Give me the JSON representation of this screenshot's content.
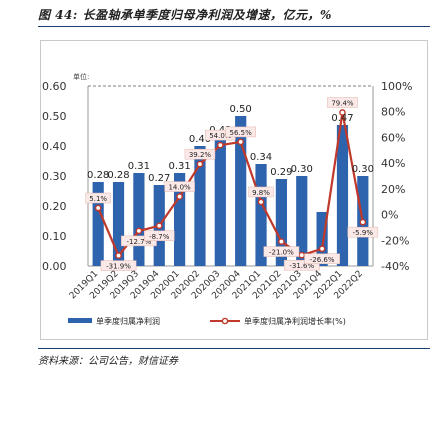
{
  "header": {
    "title": "图 44: 长盈轴承单季度归母净利润及增速，亿元，%"
  },
  "footer": {
    "source": "资料来源：公司公告，财信证券"
  },
  "chart_data": {
    "type": "bar",
    "unit_label": "单位:",
    "categories": [
      "2019Q1",
      "2019Q2",
      "2019Q3",
      "2019Q4",
      "2020Q1",
      "2020Q2",
      "2020Q3",
      "2020Q4",
      "2021Q1",
      "2021Q2",
      "2021Q3",
      "2021Q4",
      "2022Q1",
      "2022Q2"
    ],
    "series": [
      {
        "name": "单季度归属净利润",
        "axis": "left",
        "color": "#2e63ad",
        "values": [
          0.28,
          0.28,
          0.31,
          0.27,
          0.31,
          0.4,
          0.43,
          0.5,
          0.34,
          0.29,
          0.3,
          0.18,
          0.47,
          0.3
        ]
      },
      {
        "name": "单季度归属净利润增长率(%)",
        "axis": "right",
        "color": "#c0392b",
        "values": [
          5.1,
          -31.9,
          -12.7,
          -8.7,
          14.0,
          39.2,
          54.0,
          56.5,
          9.8,
          -21.0,
          -31.6,
          -26.6,
          79.4,
          -5.9
        ]
      }
    ],
    "bar_labels": [
      "0.28",
      "0.28",
      "0.31",
      "0.27",
      "0.31",
      "0.40",
      "0.43",
      "0.50",
      "0.34",
      "0.29",
      "0.30",
      "",
      "0.47",
      "0.30"
    ],
    "line_labels": [
      "5.1%",
      "-31.9%",
      "-12.7%",
      "-8.7%",
      "14.0%",
      "39.2%",
      "54.0%",
      "56.5%",
      "9.8%",
      "-21.0%",
      "-31.6%",
      "-26.6%",
      "79.4%",
      "-5.9%"
    ],
    "y_left": {
      "min": 0.0,
      "max": 0.6,
      "ticks": [
        "0.00",
        "0.10",
        "0.20",
        "0.30",
        "0.40",
        "0.50",
        "0.60"
      ]
    },
    "y_right": {
      "min": -40,
      "max": 100,
      "ticks": [
        "-40%",
        "-20%",
        "0%",
        "20%",
        "40%",
        "60%",
        "80%",
        "100%"
      ]
    },
    "legend": {
      "position": "bottom"
    },
    "grid": false
  }
}
